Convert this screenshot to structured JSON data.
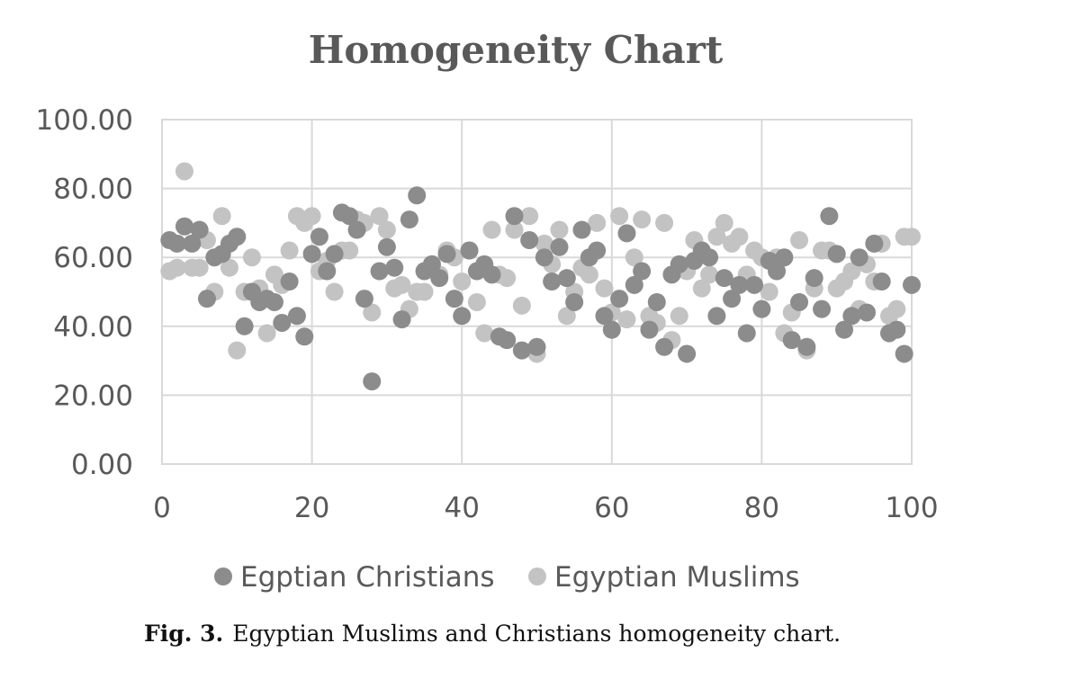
{
  "caption": {
    "label": "Fig. 3.",
    "text": "Egyptian Muslims and Christians homogeneity chart."
  },
  "chart_data": {
    "type": "scatter",
    "title": "Homogeneity Chart",
    "xlabel": "",
    "ylabel": "",
    "xlim": [
      0,
      100
    ],
    "ylim": [
      0,
      100
    ],
    "x_ticks": [
      "0",
      "20",
      "40",
      "60",
      "80",
      "100"
    ],
    "y_ticks": [
      "0.00",
      "20.00",
      "40.00",
      "60.00",
      "80.00",
      "100.00"
    ],
    "grid": true,
    "legend_position": "bottom",
    "series": [
      {
        "name": "Egptian Christians",
        "color": "#8c8c8c",
        "points": [
          [
            1,
            65
          ],
          [
            2,
            64
          ],
          [
            3,
            69
          ],
          [
            4,
            64
          ],
          [
            5,
            68
          ],
          [
            6,
            48
          ],
          [
            7,
            60
          ],
          [
            8,
            61
          ],
          [
            9,
            64
          ],
          [
            10,
            66
          ],
          [
            11,
            40
          ],
          [
            12,
            50
          ],
          [
            13,
            47
          ],
          [
            14,
            48
          ],
          [
            15,
            47
          ],
          [
            16,
            41
          ],
          [
            17,
            53
          ],
          [
            18,
            43
          ],
          [
            19,
            37
          ],
          [
            20,
            61
          ],
          [
            21,
            66
          ],
          [
            22,
            56
          ],
          [
            23,
            61
          ],
          [
            24,
            73
          ],
          [
            25,
            72
          ],
          [
            26,
            68
          ],
          [
            27,
            48
          ],
          [
            28,
            24
          ],
          [
            29,
            56
          ],
          [
            30,
            63
          ],
          [
            31,
            57
          ],
          [
            32,
            42
          ],
          [
            33,
            71
          ],
          [
            34,
            78
          ],
          [
            35,
            56
          ],
          [
            36,
            58
          ],
          [
            37,
            54
          ],
          [
            38,
            61
          ],
          [
            39,
            48
          ],
          [
            40,
            43
          ],
          [
            41,
            62
          ],
          [
            42,
            56
          ],
          [
            43,
            58
          ],
          [
            44,
            55
          ],
          [
            45,
            37
          ],
          [
            46,
            36
          ],
          [
            47,
            72
          ],
          [
            48,
            33
          ],
          [
            49,
            65
          ],
          [
            50,
            34
          ],
          [
            51,
            60
          ],
          [
            52,
            53
          ],
          [
            53,
            63
          ],
          [
            54,
            54
          ],
          [
            55,
            47
          ],
          [
            56,
            68
          ],
          [
            57,
            60
          ],
          [
            58,
            62
          ],
          [
            59,
            43
          ],
          [
            60,
            39
          ],
          [
            61,
            48
          ],
          [
            62,
            67
          ],
          [
            63,
            52
          ],
          [
            64,
            56
          ],
          [
            65,
            39
          ],
          [
            66,
            47
          ],
          [
            67,
            34
          ],
          [
            68,
            55
          ],
          [
            69,
            58
          ],
          [
            70,
            32
          ],
          [
            71,
            59
          ],
          [
            72,
            62
          ],
          [
            73,
            60
          ],
          [
            74,
            43
          ],
          [
            75,
            54
          ],
          [
            76,
            48
          ],
          [
            77,
            52
          ],
          [
            78,
            38
          ],
          [
            79,
            52
          ],
          [
            80,
            45
          ],
          [
            81,
            59
          ],
          [
            82,
            56
          ],
          [
            83,
            60
          ],
          [
            84,
            36
          ],
          [
            85,
            47
          ],
          [
            86,
            34
          ],
          [
            87,
            54
          ],
          [
            88,
            45
          ],
          [
            89,
            72
          ],
          [
            90,
            61
          ],
          [
            91,
            39
          ],
          [
            92,
            43
          ],
          [
            93,
            60
          ],
          [
            94,
            44
          ],
          [
            95,
            64
          ],
          [
            96,
            53
          ],
          [
            97,
            38
          ],
          [
            98,
            39
          ],
          [
            99,
            32
          ],
          [
            100,
            52
          ]
        ]
      },
      {
        "name": "Egyptian Muslims",
        "color": "#c3c3c3",
        "points": [
          [
            1,
            56
          ],
          [
            2,
            57
          ],
          [
            3,
            85
          ],
          [
            4,
            57
          ],
          [
            5,
            57
          ],
          [
            6,
            65
          ],
          [
            7,
            50
          ],
          [
            8,
            72
          ],
          [
            9,
            57
          ],
          [
            10,
            33
          ],
          [
            11,
            50
          ],
          [
            12,
            60
          ],
          [
            13,
            51
          ],
          [
            14,
            38
          ],
          [
            15,
            55
          ],
          [
            16,
            52
          ],
          [
            17,
            62
          ],
          [
            18,
            72
          ],
          [
            19,
            70
          ],
          [
            20,
            72
          ],
          [
            21,
            56
          ],
          [
            22,
            59
          ],
          [
            23,
            50
          ],
          [
            24,
            62
          ],
          [
            25,
            62
          ],
          [
            26,
            71
          ],
          [
            27,
            70
          ],
          [
            28,
            44
          ],
          [
            29,
            72
          ],
          [
            30,
            68
          ],
          [
            31,
            51
          ],
          [
            32,
            52
          ],
          [
            33,
            45
          ],
          [
            34,
            50
          ],
          [
            35,
            50
          ],
          [
            36,
            58
          ],
          [
            37,
            55
          ],
          [
            38,
            62
          ],
          [
            39,
            60
          ],
          [
            40,
            53
          ],
          [
            41,
            62
          ],
          [
            42,
            47
          ],
          [
            43,
            38
          ],
          [
            44,
            68
          ],
          [
            45,
            55
          ],
          [
            46,
            54
          ],
          [
            47,
            68
          ],
          [
            48,
            46
          ],
          [
            49,
            72
          ],
          [
            50,
            32
          ],
          [
            51,
            64
          ],
          [
            52,
            58
          ],
          [
            53,
            68
          ],
          [
            54,
            43
          ],
          [
            55,
            50
          ],
          [
            56,
            57
          ],
          [
            57,
            55
          ],
          [
            58,
            70
          ],
          [
            59,
            51
          ],
          [
            60,
            44
          ],
          [
            61,
            72
          ],
          [
            62,
            42
          ],
          [
            63,
            60
          ],
          [
            64,
            71
          ],
          [
            65,
            43
          ],
          [
            66,
            41
          ],
          [
            67,
            70
          ],
          [
            68,
            36
          ],
          [
            69,
            43
          ],
          [
            70,
            56
          ],
          [
            71,
            65
          ],
          [
            72,
            51
          ],
          [
            73,
            55
          ],
          [
            74,
            66
          ],
          [
            75,
            70
          ],
          [
            76,
            64
          ],
          [
            77,
            66
          ],
          [
            78,
            55
          ],
          [
            79,
            62
          ],
          [
            80,
            60
          ],
          [
            81,
            50
          ],
          [
            82,
            60
          ],
          [
            83,
            38
          ],
          [
            84,
            44
          ],
          [
            85,
            65
          ],
          [
            86,
            33
          ],
          [
            87,
            51
          ],
          [
            88,
            62
          ],
          [
            89,
            62
          ],
          [
            90,
            51
          ],
          [
            91,
            53
          ],
          [
            92,
            56
          ],
          [
            93,
            45
          ],
          [
            94,
            58
          ],
          [
            95,
            53
          ],
          [
            96,
            64
          ],
          [
            97,
            43
          ],
          [
            98,
            45
          ],
          [
            99,
            66
          ],
          [
            100,
            66
          ]
        ]
      }
    ]
  }
}
